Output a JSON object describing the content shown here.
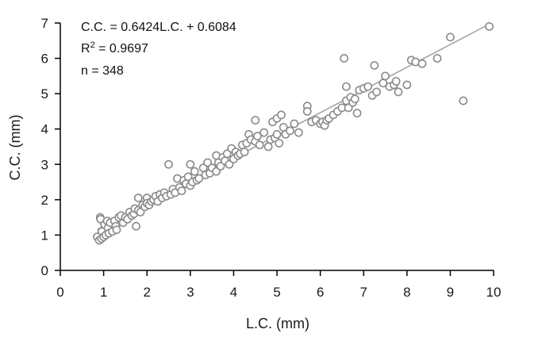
{
  "chart_data": {
    "type": "scatter",
    "title": "",
    "xlabel": "L.C. (mm)",
    "ylabel": "C.C. (mm)",
    "xlim": [
      0,
      10
    ],
    "ylim": [
      0,
      7
    ],
    "xticks": [
      0,
      1,
      2,
      3,
      4,
      5,
      6,
      7,
      8,
      9,
      10
    ],
    "yticks": [
      0,
      1,
      2,
      3,
      4,
      5,
      6,
      7
    ],
    "grid": false,
    "annotations": {
      "equation": "C.C. = 0.6424L.C. + 0.6084",
      "r2_prefix": "R",
      "r2_sup": "2",
      "r2_value": " = 0.9697",
      "n": "n = 348"
    },
    "trendline": {
      "slope": 0.6424,
      "intercept": 0.6084,
      "x_range": [
        0.85,
        9.9
      ]
    },
    "colors": {
      "marker_stroke": "#8a8a8a",
      "marker_fill": "#ffffff",
      "trendline": "#a6a6a6",
      "axis": "#000000"
    },
    "points": [
      [
        0.85,
        0.95
      ],
      [
        0.9,
        0.85
      ],
      [
        0.92,
        1.5
      ],
      [
        0.93,
        1.45
      ],
      [
        0.95,
        0.9
      ],
      [
        0.96,
        1.1
      ],
      [
        1.0,
        0.95
      ],
      [
        1.02,
        1.3
      ],
      [
        1.05,
        1.0
      ],
      [
        1.08,
        1.4
      ],
      [
        1.1,
        1.2
      ],
      [
        1.12,
        1.05
      ],
      [
        1.15,
        1.35
      ],
      [
        1.2,
        1.1
      ],
      [
        1.25,
        1.4
      ],
      [
        1.28,
        1.25
      ],
      [
        1.3,
        1.15
      ],
      [
        1.35,
        1.5
      ],
      [
        1.4,
        1.55
      ],
      [
        1.45,
        1.35
      ],
      [
        1.5,
        1.5
      ],
      [
        1.55,
        1.45
      ],
      [
        1.6,
        1.65
      ],
      [
        1.65,
        1.55
      ],
      [
        1.7,
        1.6
      ],
      [
        1.72,
        1.75
      ],
      [
        1.75,
        1.25
      ],
      [
        1.8,
        2.05
      ],
      [
        1.8,
        1.7
      ],
      [
        1.85,
        1.65
      ],
      [
        1.9,
        1.85
      ],
      [
        1.95,
        1.8
      ],
      [
        2.0,
        2.05
      ],
      [
        2.0,
        1.9
      ],
      [
        2.05,
        1.85
      ],
      [
        2.1,
        1.95
      ],
      [
        2.15,
        2.0
      ],
      [
        2.2,
        2.1
      ],
      [
        2.25,
        1.95
      ],
      [
        2.3,
        2.15
      ],
      [
        2.35,
        2.05
      ],
      [
        2.4,
        2.2
      ],
      [
        2.45,
        2.1
      ],
      [
        2.5,
        3.0
      ],
      [
        2.55,
        2.15
      ],
      [
        2.6,
        2.3
      ],
      [
        2.65,
        2.2
      ],
      [
        2.7,
        2.6
      ],
      [
        2.75,
        2.35
      ],
      [
        2.8,
        2.25
      ],
      [
        2.85,
        2.55
      ],
      [
        2.9,
        2.45
      ],
      [
        2.95,
        2.65
      ],
      [
        3.0,
        3.0
      ],
      [
        3.0,
        2.4
      ],
      [
        3.05,
        2.5
      ],
      [
        3.1,
        2.8
      ],
      [
        3.15,
        2.55
      ],
      [
        3.2,
        2.6
      ],
      [
        3.3,
        2.9
      ],
      [
        3.35,
        2.7
      ],
      [
        3.4,
        3.05
      ],
      [
        3.45,
        2.75
      ],
      [
        3.5,
        2.9
      ],
      [
        3.6,
        3.25
      ],
      [
        3.6,
        2.8
      ],
      [
        3.65,
        3.05
      ],
      [
        3.7,
        2.95
      ],
      [
        3.75,
        3.2
      ],
      [
        3.8,
        3.1
      ],
      [
        3.85,
        3.3
      ],
      [
        3.9,
        3.0
      ],
      [
        3.95,
        3.45
      ],
      [
        4.0,
        3.15
      ],
      [
        4.05,
        3.35
      ],
      [
        4.1,
        3.25
      ],
      [
        4.15,
        3.3
      ],
      [
        4.2,
        3.55
      ],
      [
        4.25,
        3.35
      ],
      [
        4.3,
        3.6
      ],
      [
        4.35,
        3.85
      ],
      [
        4.4,
        3.7
      ],
      [
        4.5,
        4.25
      ],
      [
        4.5,
        3.65
      ],
      [
        4.55,
        3.8
      ],
      [
        4.6,
        3.55
      ],
      [
        4.7,
        3.9
      ],
      [
        4.8,
        3.5
      ],
      [
        4.85,
        3.7
      ],
      [
        4.9,
        4.2
      ],
      [
        4.95,
        3.75
      ],
      [
        5.0,
        4.3
      ],
      [
        5.0,
        3.85
      ],
      [
        5.05,
        3.6
      ],
      [
        5.1,
        4.4
      ],
      [
        5.15,
        4.05
      ],
      [
        5.2,
        3.85
      ],
      [
        5.3,
        3.95
      ],
      [
        5.4,
        4.15
      ],
      [
        5.5,
        3.9
      ],
      [
        5.7,
        4.65
      ],
      [
        5.7,
        4.5
      ],
      [
        5.8,
        4.2
      ],
      [
        5.9,
        4.25
      ],
      [
        6.0,
        4.15
      ],
      [
        6.05,
        4.2
      ],
      [
        6.1,
        4.1
      ],
      [
        6.15,
        4.25
      ],
      [
        6.2,
        4.3
      ],
      [
        6.3,
        4.4
      ],
      [
        6.4,
        4.5
      ],
      [
        6.5,
        4.6
      ],
      [
        6.55,
        6.0
      ],
      [
        6.6,
        5.2
      ],
      [
        6.6,
        4.8
      ],
      [
        6.65,
        4.6
      ],
      [
        6.7,
        4.9
      ],
      [
        6.75,
        4.75
      ],
      [
        6.8,
        4.85
      ],
      [
        6.85,
        4.45
      ],
      [
        6.9,
        5.1
      ],
      [
        7.0,
        5.15
      ],
      [
        7.1,
        5.2
      ],
      [
        7.2,
        4.95
      ],
      [
        7.25,
        5.8
      ],
      [
        7.3,
        5.05
      ],
      [
        7.45,
        5.3
      ],
      [
        7.5,
        5.5
      ],
      [
        7.6,
        5.2
      ],
      [
        7.7,
        5.25
      ],
      [
        7.75,
        5.35
      ],
      [
        7.8,
        5.05
      ],
      [
        8.0,
        5.25
      ],
      [
        8.1,
        5.95
      ],
      [
        8.2,
        5.9
      ],
      [
        8.35,
        5.85
      ],
      [
        8.7,
        6.0
      ],
      [
        9.0,
        6.6
      ],
      [
        9.3,
        4.8
      ],
      [
        9.9,
        6.9
      ]
    ]
  }
}
